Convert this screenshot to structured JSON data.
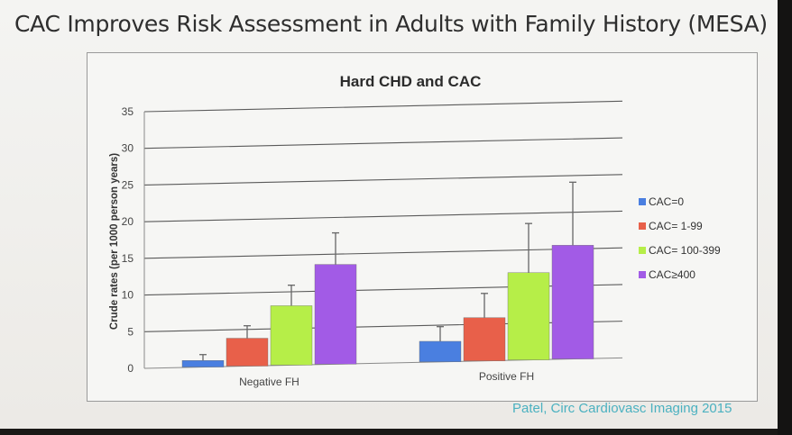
{
  "slide": {
    "title": "CAC Improves Risk Assessment in Adults with Family History (MESA)",
    "citation": "Patel, Circ Cardiovasc Imaging 2015"
  },
  "chart_data": {
    "type": "bar",
    "title": "Hard CHD and CAC",
    "xlabel": "",
    "ylabel": "Crude rates (per 1000 person years)",
    "ylim": [
      0,
      35
    ],
    "yticks": [
      0,
      5,
      10,
      15,
      20,
      25,
      30,
      35
    ],
    "ytick_labels": [
      "0",
      "5",
      "10",
      "15",
      "20",
      "25",
      "30",
      "35"
    ],
    "grid": true,
    "legend_position": "right",
    "categories": [
      "Negative FH",
      "Positive FH"
    ],
    "series": [
      {
        "name": "CAC=0",
        "color": "#4a7fe0",
        "values": [
          0.9,
          2.8
        ],
        "error_upper": [
          1.7,
          4.8
        ]
      },
      {
        "name": "CAC= 1-99",
        "color": "#e8604a",
        "values": [
          3.8,
          5.9
        ],
        "error_upper": [
          5.5,
          9.2
        ]
      },
      {
        "name": "CAC= 100-399",
        "color": "#b6ee48",
        "values": [
          8.1,
          11.9
        ],
        "error_upper": [
          10.9,
          18.6
        ]
      },
      {
        "name": "CAC≥400",
        "color": "#a25be6",
        "values": [
          13.6,
          15.5
        ],
        "error_upper": [
          17.9,
          24.1
        ]
      }
    ]
  }
}
